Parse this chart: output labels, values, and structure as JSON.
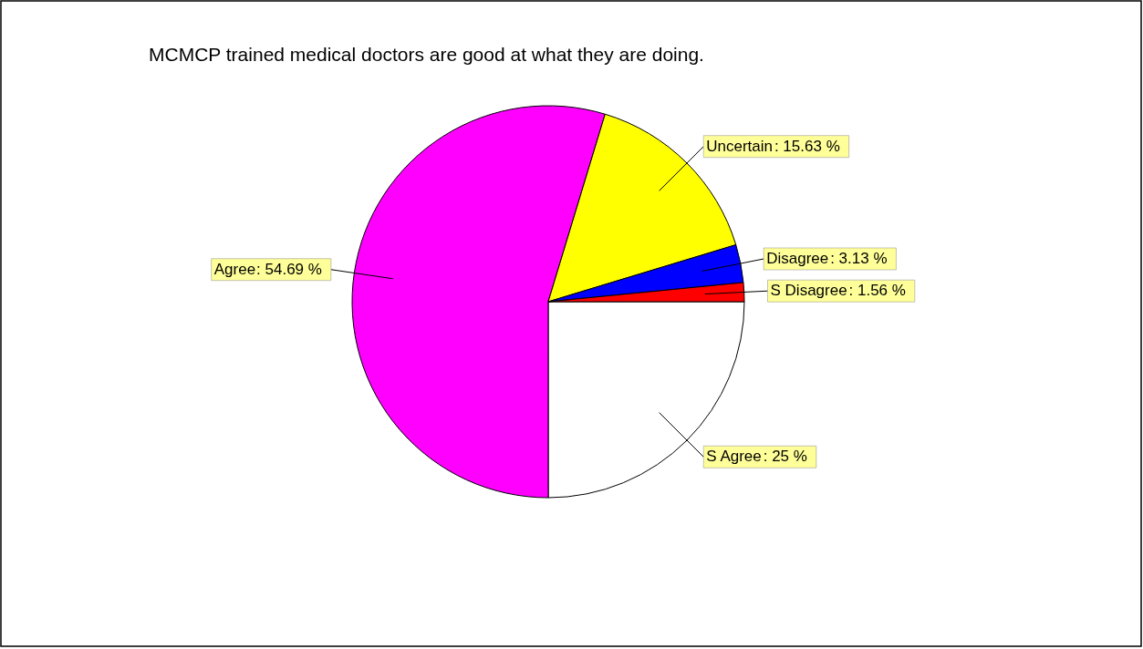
{
  "chart_data": {
    "type": "pie",
    "title": "MCMCP trained medical doctors are good at what they are doing.",
    "categories": [
      "S Agree",
      "Agree",
      "Uncertain",
      "Disagree",
      "S Disagree"
    ],
    "values": [
      25,
      54.69,
      15.63,
      3.13,
      1.56
    ],
    "colors": [
      "#ffffff",
      "#ff00ff",
      "#ffff00",
      "#0000ff",
      "#ff0000"
    ],
    "value_labels": [
      ":  25 %",
      ":  54.69 %",
      ":  15.63 %",
      ":  3.13 %",
      ":  1.56 %"
    ]
  }
}
